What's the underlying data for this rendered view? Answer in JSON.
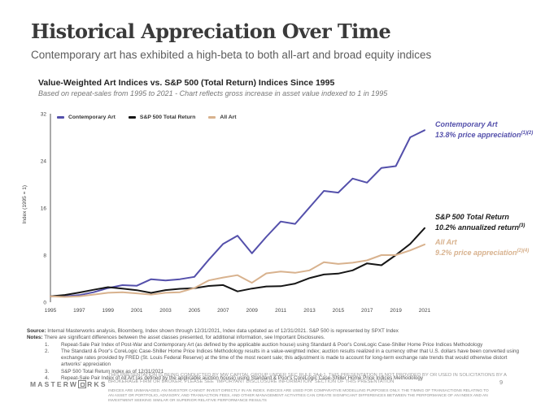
{
  "page": {
    "title": "Historical Appreciation Over Time",
    "subtitle": "Contemporary art has exhibited a high-beta to both all-art and broad equity indices"
  },
  "chart": {
    "title": "Value-Weighted Art Indices vs. S&P 500 (Total Return) Indices Since 1995",
    "subtitle": "Based on repeat-sales from 1995 to 2021 - Chart reflects gross increase in asset value indexed to 1 in 1995"
  },
  "chart_data": {
    "type": "line",
    "title": "Value-Weighted Art Indices vs. S&P 500 (Total Return) Indices Since 1995",
    "ylabel": "Index (1995 = 1)",
    "ylim": [
      0,
      32
    ],
    "y_ticks": [
      0,
      8,
      16,
      24,
      32
    ],
    "grid": false,
    "legend_position": "top-left",
    "x": [
      1995,
      1996,
      1997,
      1998,
      1999,
      2000,
      2001,
      2002,
      2003,
      2004,
      2005,
      2006,
      2007,
      2008,
      2009,
      2010,
      2011,
      2012,
      2013,
      2014,
      2015,
      2016,
      2017,
      2018,
      2019,
      2020,
      2021
    ],
    "x_tick_labels": [
      1995,
      1997,
      1999,
      2001,
      2003,
      2005,
      2007,
      2009,
      2011,
      2013,
      2015,
      2017,
      2019,
      2021
    ],
    "series": [
      {
        "name": "Contemporary Art",
        "color": "#5450ab",
        "values": [
          1.0,
          1.0,
          1.2,
          1.7,
          2.4,
          2.9,
          2.8,
          3.9,
          3.7,
          3.9,
          4.3,
          7.2,
          9.9,
          11.3,
          8.3,
          11.1,
          13.7,
          13.3,
          16.1,
          18.9,
          18.6,
          21.0,
          20.3,
          22.8,
          23.1,
          28.0,
          29.2
        ]
      },
      {
        "name": "S&P 500 Total Return",
        "color": "#161616",
        "values": [
          1.0,
          1.23,
          1.64,
          2.11,
          2.55,
          2.32,
          2.04,
          1.59,
          2.05,
          2.27,
          2.38,
          2.76,
          2.91,
          1.83,
          2.32,
          2.67,
          2.72,
          3.16,
          4.1,
          4.7,
          4.85,
          5.4,
          6.6,
          6.28,
          8.0,
          9.9,
          12.58
        ]
      },
      {
        "name": "All Art",
        "color": "#d8b28e",
        "values": [
          1.0,
          0.9,
          1.0,
          1.3,
          1.6,
          1.7,
          1.5,
          1.3,
          1.6,
          1.7,
          2.4,
          3.7,
          4.2,
          4.6,
          3.3,
          4.9,
          5.2,
          5.0,
          5.4,
          6.8,
          6.5,
          6.7,
          7.1,
          8.0,
          8.0,
          8.8,
          9.8
        ]
      }
    ],
    "annotations": [
      {
        "line1": "Contemporary Art",
        "line2": "13.8% price appreciation",
        "sup": "(1)(2)",
        "color": "#5450ab"
      },
      {
        "line1": "S&P 500 Total Return",
        "line2": "10.2% annualized return",
        "sup": "(3)",
        "color": "#1a1a1a"
      },
      {
        "line1": "All Art",
        "line2": "9.2% price appreciation",
        "sup": "(2)(4)",
        "color": "#d8b28e"
      }
    ]
  },
  "footnotes": {
    "source_label": "Source:",
    "source_text": " Internal Masterworks analysis, Bloomberg, Index shown through 12/31/2021, Index data updated as of 12/31/2021. S&P 500 is represented by SPXT Index",
    "notes_label": "Notes:",
    "notes_text": " There are significant differences between the asset classes presented, for additional information, see Important Disclosures.",
    "items": [
      {
        "num": "1.",
        "text": "Repeat-Sale Pair Index of Post-War and Contemporary Art (as defined by the applicable auction house) using Standard & Poor's CoreLogic Case-Shiller Home Price Indices Methodology"
      },
      {
        "num": "2.",
        "text": "The Standard & Poor's CoreLogic Case-Shiller Home Price Indices Methodology results in a value-weighted index; auction results realized in a currency other that U.S. dollars have been converted using exchange rates provided by FRED (St. Louis Federal Reserve) at the time of the most recent sale; this adjustment is made to account for long-term exchange rate trends that would otherwise distort artworks' appreciation"
      },
      {
        "num": "3.",
        "text": "S&P 500 Total Return Index as of 12/31/2021"
      },
      {
        "num": "4.",
        "text": "Repeat-Sale Pair Index of All Art (as defined by the applicable auction house) using Standard & Poor's CoreLogic Case-Shiller Home Price Indices Methodology"
      }
    ]
  },
  "footer": {
    "logo_prefix": "MASTERW",
    "logo_suffix": "RKS",
    "disclaimer1": "THIS PRESENTATION IS BEING CONDUCTED BY MW CAPITAL GROUP UNDER SEC RULE 3A4-1. THIS PRESENTATION IS NOT PROVIDED BY OR USED IN SOLICITATIONS BY A BROKERAGE FIRM OR BROKER. PLEASE SEE \"IMPORTANT DISCLOSURE INFORMATION\" SECTION OF THIS PRESENTATION",
    "disclaimer2": "INDICES ARE UNMANAGED. AN INVESTOR CANNOT INVEST DIRECTLY IN AN INDEX. INDICES ARE USED FOR COMPARATIVE MODELLING PURPOSES ONLY. THE TIMING OF TRANSACTIONS RELATING TO AN ASSET OR PORTFOLIO, ADVISORY, AND TRANSACTION FEES, AND OTHER MANAGEMENT ACTIVITIES CAN CREATE SIGNIFICANT DIFFERENCES BETWEEN THE PERFORMANCE OF AN INDEX AND AN INVESTMENT SEEKING SIMILAR OR SUPERIOR RELATIVE PERFORMANCE RESULTS",
    "page_number": "9"
  }
}
